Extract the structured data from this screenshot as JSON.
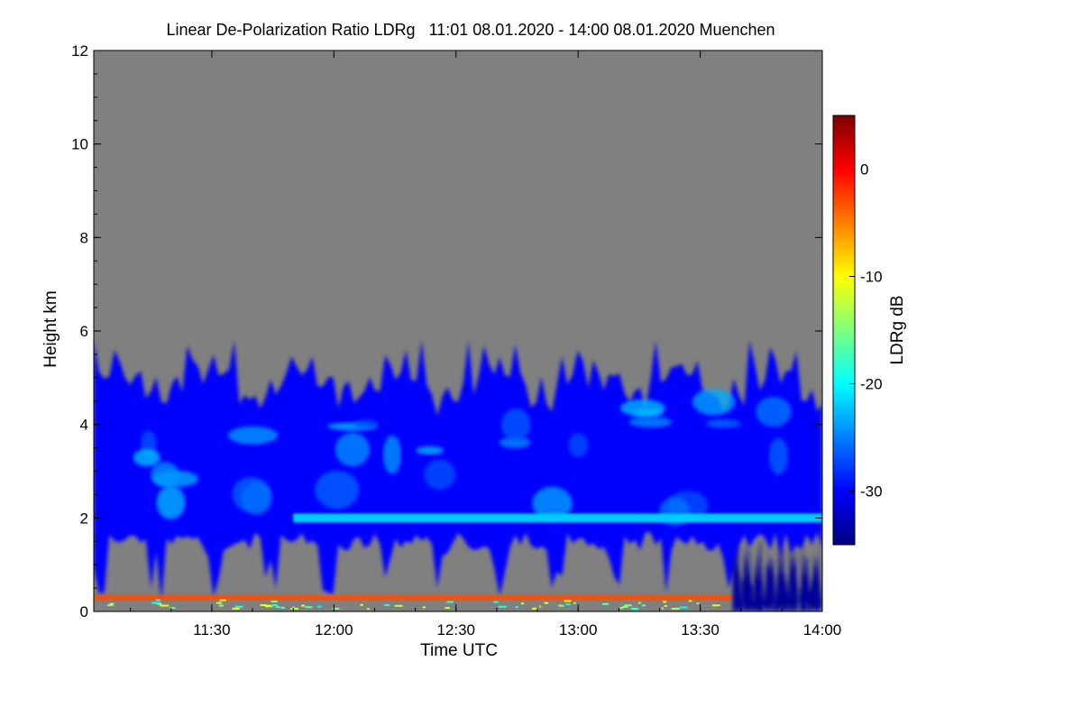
{
  "chart_data": {
    "type": "heatmap",
    "title": "Linear De-Polarization Ratio LDRg   11:01 08.01.2020 - 14:00 08.01.2020 Muenchen",
    "xlabel": "Time UTC",
    "ylabel": "Height km",
    "colorbar_label": "LDRg dB",
    "xlim": [
      "11:01",
      "14:00"
    ],
    "ylim": [
      0,
      12
    ],
    "x_ticks": [
      "11:30",
      "12:00",
      "12:30",
      "13:00",
      "13:30",
      "14:00"
    ],
    "y_ticks": [
      0,
      2,
      4,
      6,
      8,
      10,
      12
    ],
    "colorbar_ticks": [
      0,
      -10,
      -20,
      -30
    ],
    "colorbar_range": [
      -35,
      5
    ],
    "colormap": [
      "#00007f",
      "#0000ff",
      "#007fff",
      "#00ffff",
      "#7fff7f",
      "#ffff00",
      "#ff7f00",
      "#ff0000",
      "#7f0000"
    ],
    "no_data_color": "#808080",
    "layers": [
      {
        "feature": "ice cloud body",
        "time_start": "11:01",
        "time_end": "14:00",
        "height_base_km": 1.5,
        "height_top_km": 5.8,
        "ldr_db": -30
      },
      {
        "feature": "depolarizing layer",
        "time_start": "11:50",
        "time_end": "14:00",
        "height_km": 2.0,
        "ldr_db": -22
      },
      {
        "feature": "surface clutter",
        "time_start": "11:01",
        "time_end": "13:38",
        "height_km": 0.3,
        "ldr_db": -3
      },
      {
        "feature": "low-level return",
        "time_start": "13:38",
        "time_end": "14:00",
        "height_base_km": 0.0,
        "height_top_km": 1.7,
        "ldr_db": -34
      }
    ]
  }
}
